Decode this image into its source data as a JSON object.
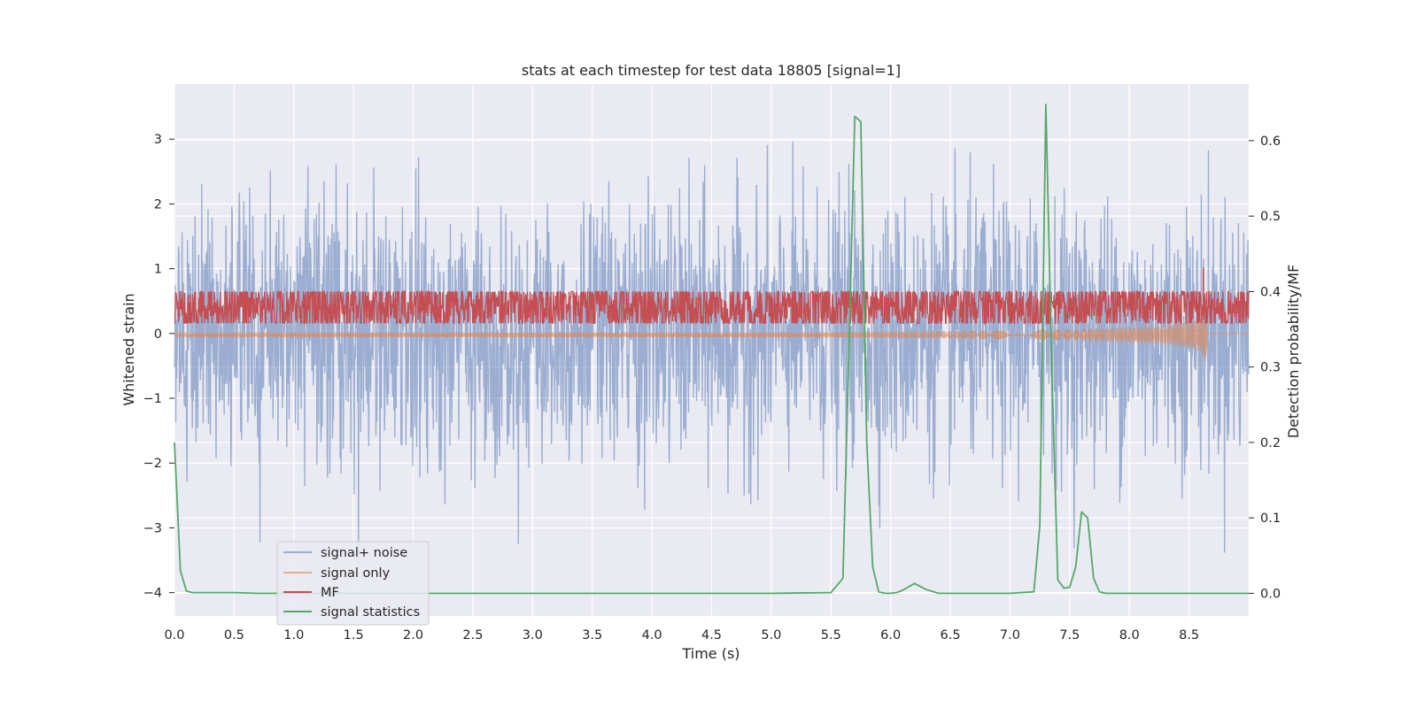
{
  "chart_data": {
    "type": "line",
    "title": "stats at each timestep for test data 18805 [signal=1]",
    "xlabel": "Time (s)",
    "ylabel": "Whitened strain",
    "y2label": "Detection probability/MF",
    "xlim": [
      0.0,
      9.0
    ],
    "ylim": [
      -4.36,
      3.85
    ],
    "y2lim": [
      -0.03,
      0.675
    ],
    "xticks": [
      "0.0",
      "0.5",
      "1.0",
      "1.5",
      "2.0",
      "2.5",
      "3.0",
      "3.5",
      "4.0",
      "4.5",
      "5.0",
      "5.5",
      "6.0",
      "6.5",
      "7.0",
      "7.5",
      "8.0",
      "8.5"
    ],
    "yticks": [
      3,
      2,
      1,
      0,
      -1,
      -2,
      -3,
      -4
    ],
    "ytick_labels": [
      "3",
      "2",
      "1",
      "0",
      "−1",
      "−2",
      "−3",
      "−4"
    ],
    "y2ticks": [
      0.6,
      0.5,
      0.4,
      0.3,
      0.2,
      0.1,
      0.0
    ],
    "y2tick_labels": [
      "0.6",
      "0.5",
      "0.4",
      "0.3",
      "0.2",
      "0.1",
      "0.0"
    ],
    "grid": true,
    "legend_position": "lower-left",
    "series": [
      {
        "name": "signal+ noise",
        "axis": "left",
        "color": "#4c72b0",
        "description_stats": {
          "duration_s": 9.0,
          "typical_range": [
            -2.0,
            2.0
          ],
          "max": 3.5,
          "min": -4.0
        }
      },
      {
        "name": "signal only",
        "axis": "left",
        "color": "#dd8452",
        "envelope": {
          "x": [
            0.0,
            5.0,
            6.0,
            7.0,
            7.5,
            8.0,
            8.3,
            8.5,
            8.6,
            8.65
          ],
          "amp": [
            0.03,
            0.04,
            0.05,
            0.07,
            0.09,
            0.12,
            0.15,
            0.2,
            0.26,
            0.5
          ]
        }
      },
      {
        "name": "MF",
        "axis": "right",
        "color": "#c44e52",
        "description_stats": {
          "mean": 0.38,
          "spread": 0.025,
          "spike": {
            "x": 8.62,
            "y": 0.432
          }
        }
      },
      {
        "name": "signal statistics",
        "axis": "right",
        "color": "#55a868",
        "x": [
          0.0,
          0.05,
          0.1,
          0.15,
          0.2,
          0.3,
          0.5,
          0.7,
          1.0,
          1.5,
          2.0,
          3.0,
          4.0,
          5.0,
          5.5,
          5.6,
          5.65,
          5.7,
          5.75,
          5.8,
          5.85,
          5.9,
          5.95,
          6.0,
          6.05,
          6.1,
          6.2,
          6.3,
          6.4,
          6.5,
          7.0,
          7.2,
          7.25,
          7.3,
          7.35,
          7.4,
          7.45,
          7.5,
          7.55,
          7.6,
          7.65,
          7.7,
          7.75,
          7.8,
          7.85,
          7.9,
          7.95,
          8.0,
          8.5,
          9.0
        ],
        "y": [
          0.2,
          0.03,
          0.003,
          0.001,
          0.001,
          0.001,
          0.001,
          0.0,
          0.0,
          0.0,
          0.0,
          0.0,
          0.0,
          0.0,
          0.001,
          0.02,
          0.32,
          0.632,
          0.625,
          0.2,
          0.035,
          0.002,
          0.0,
          0.0,
          0.001,
          0.004,
          0.013,
          0.005,
          0.0,
          0.0,
          0.0,
          0.002,
          0.09,
          0.648,
          0.3,
          0.018,
          0.007,
          0.008,
          0.035,
          0.108,
          0.1,
          0.02,
          0.002,
          0.0,
          0.0,
          0.0,
          0.0,
          0.0,
          0.0,
          0.0
        ]
      }
    ]
  },
  "colors": {
    "plot_background": "#eaeaf2",
    "grid": "#ffffff"
  }
}
